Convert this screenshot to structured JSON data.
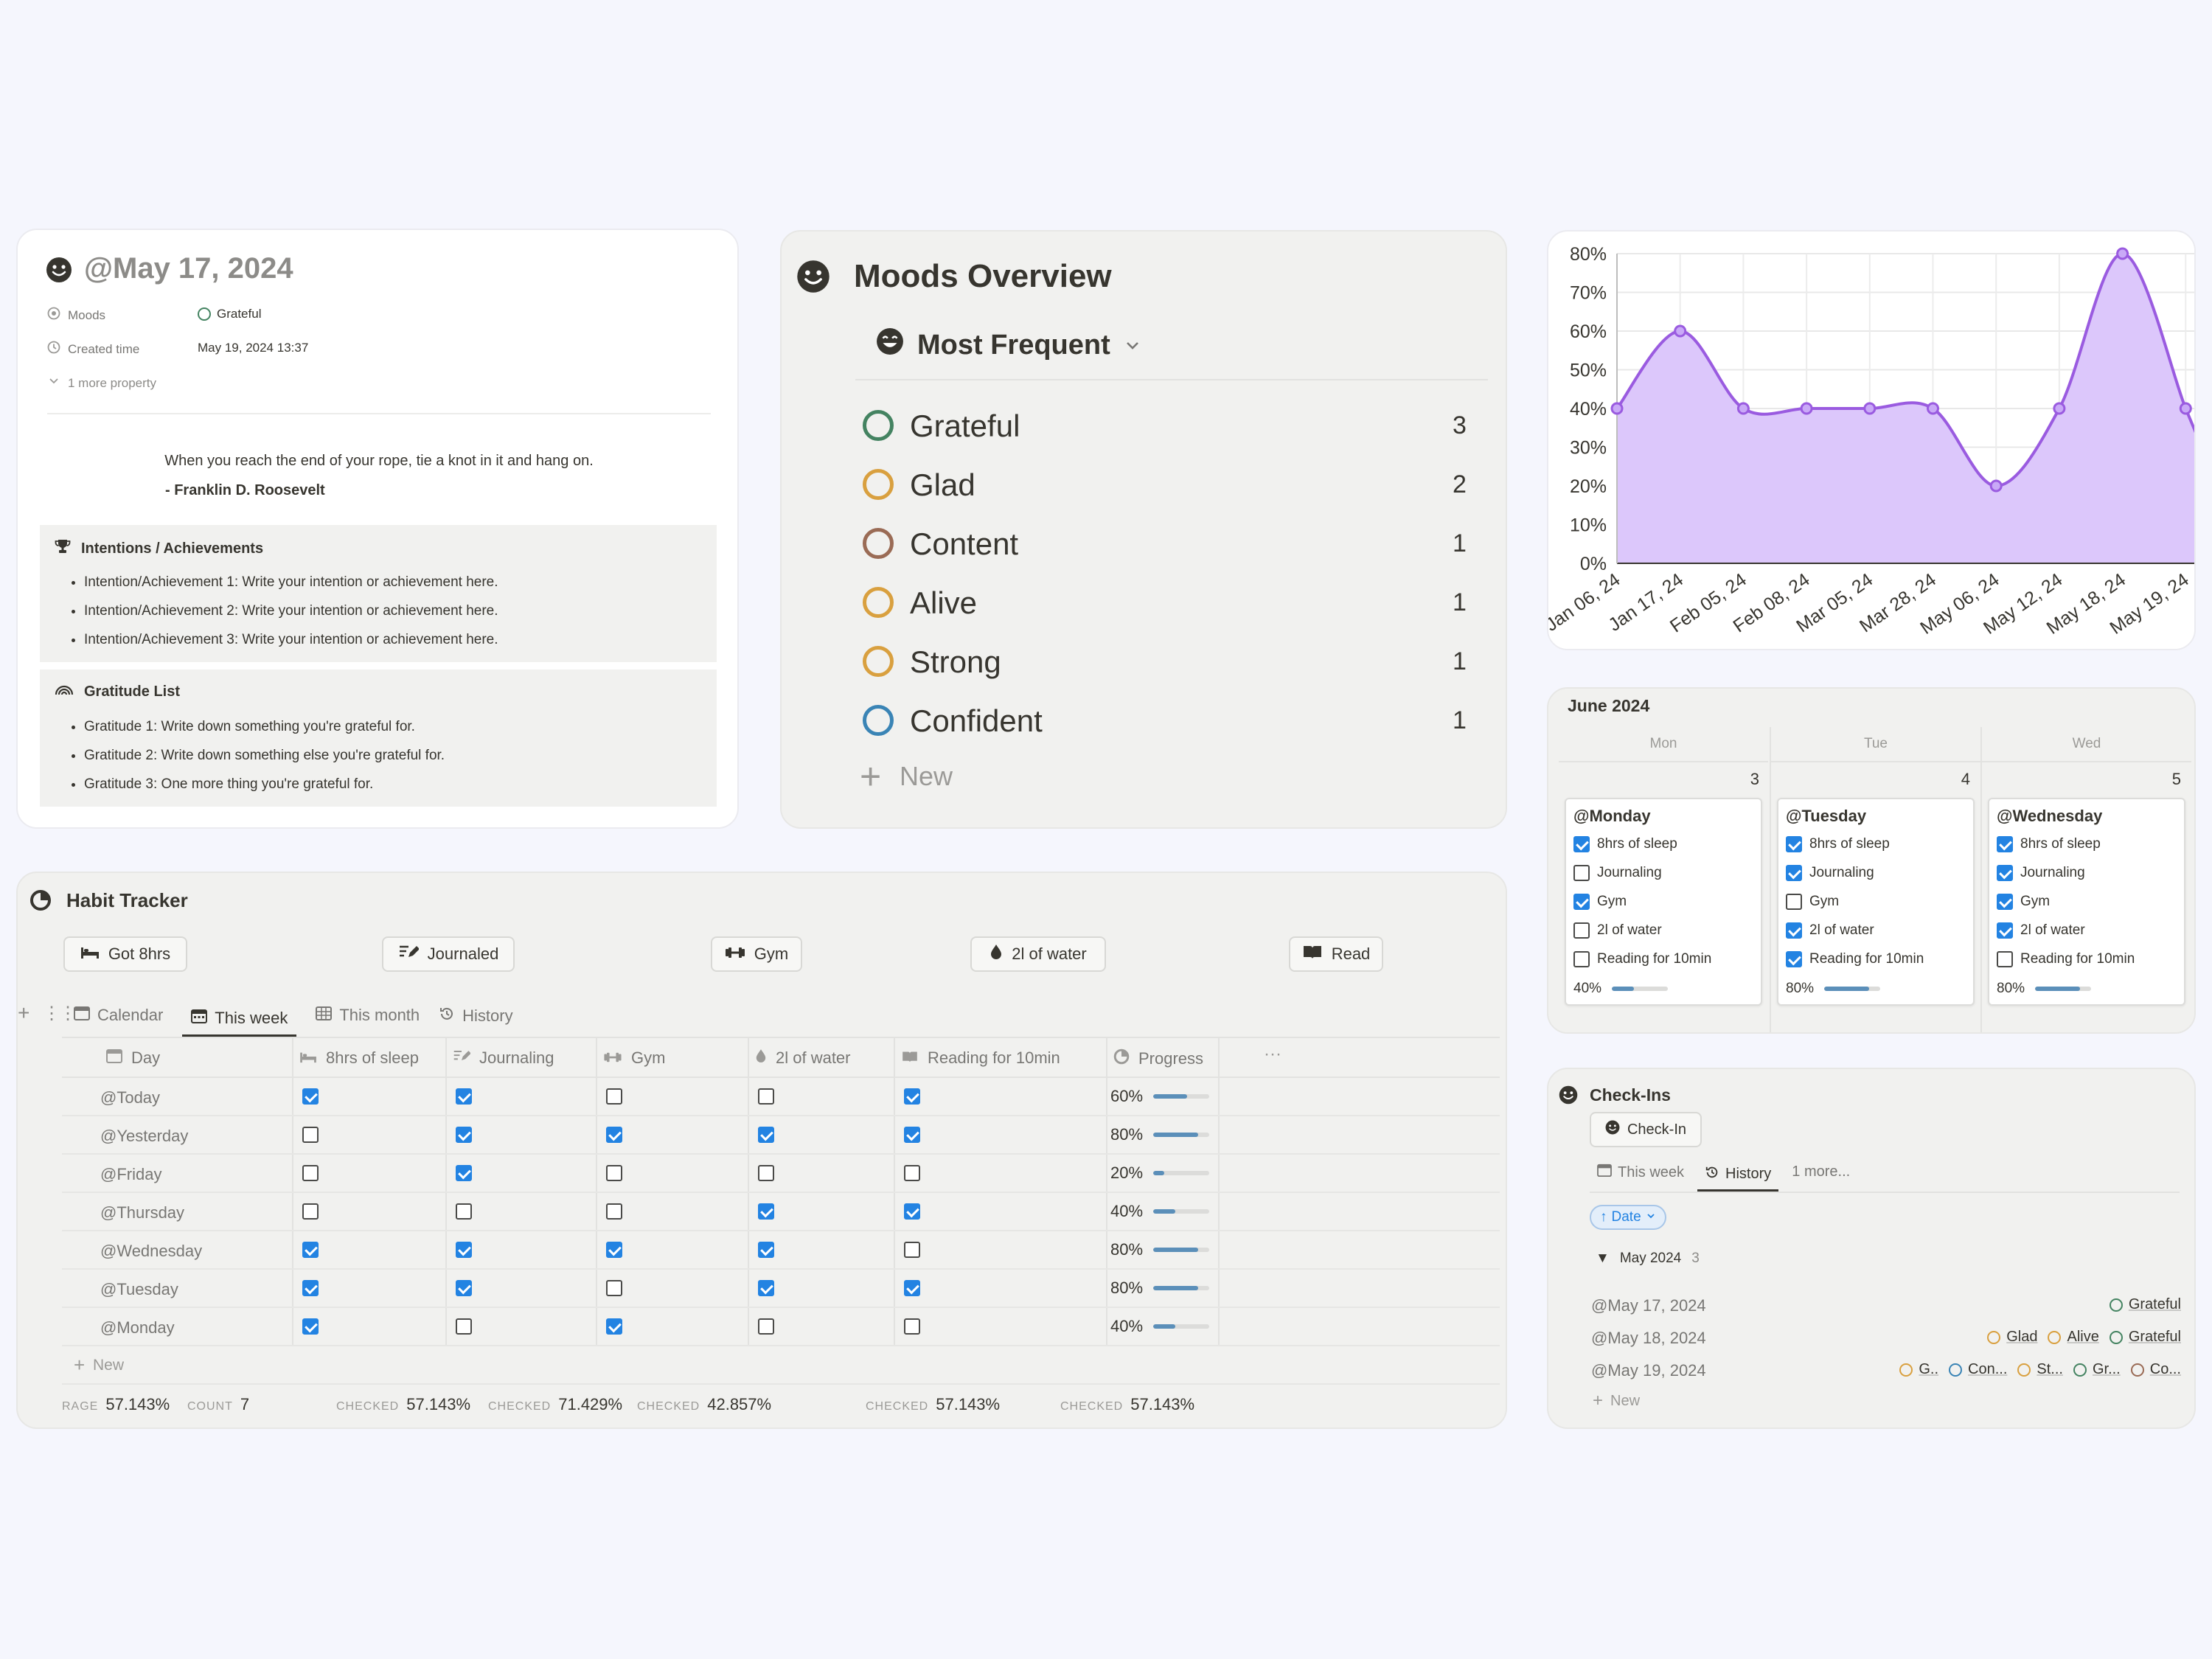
{
  "journal": {
    "title": "@May 17, 2024",
    "props": [
      {
        "label": "Moods",
        "value": "Grateful"
      },
      {
        "label": "Created time",
        "value": "May 19, 2024 13:37"
      }
    ],
    "more": "1 more property",
    "quote": "When you reach the end of your rope, tie a knot in it and hang on.",
    "author": "- Franklin D. Roosevelt",
    "intentions_title": "Intentions / Achievements",
    "intentions": [
      "Intention/Achievement 1: Write your intention or achievement here.",
      "Intention/Achievement 2: Write your intention or achievement here.",
      "Intention/Achievement 3: Write your intention or achievement here."
    ],
    "gratitude_title": "Gratitude List",
    "gratitude": [
      "Gratitude 1: Write down something you're grateful for.",
      "Gratitude 2: Write down something else you're grateful for.",
      "Gratitude 3: One more thing you're grateful for."
    ]
  },
  "moods": {
    "title": "Moods Overview",
    "view": "Most Frequent",
    "items": [
      {
        "name": "Grateful",
        "count": "3",
        "color": "#448361"
      },
      {
        "name": "Glad",
        "count": "2",
        "color": "#d9a03f"
      },
      {
        "name": "Content",
        "count": "1",
        "color": "#9a6b55"
      },
      {
        "name": "Alive",
        "count": "1",
        "color": "#d9a03f"
      },
      {
        "name": "Strong",
        "count": "1",
        "color": "#d9a03f"
      },
      {
        "name": "Confident",
        "count": "1",
        "color": "#3a84b5"
      }
    ],
    "new_label": "New"
  },
  "chart_data": {
    "type": "area",
    "x": [
      "Jan 06, 24",
      "Jan 17, 24",
      "Feb 05, 24",
      "Feb 08, 24",
      "Mar 05, 24",
      "Mar 28, 24",
      "May 06, 24",
      "May 12, 24",
      "May 18, 24",
      "May 19, 24"
    ],
    "x_cut_label": "Ma",
    "values": [
      40,
      60,
      40,
      40,
      40,
      40,
      20,
      40,
      80,
      40
    ],
    "y_ticks": [
      "80%",
      "70%",
      "60%",
      "50%",
      "40%",
      "30%",
      "20%",
      "10%",
      "0%"
    ],
    "ylim": [
      0,
      80
    ],
    "grid": true,
    "color": "#9a5be0",
    "fill": "#dcc7fb"
  },
  "calendar": {
    "month": "June 2024",
    "days": [
      {
        "dow": "Mon",
        "num": "3",
        "title": "@Monday",
        "progress": "40%",
        "value": 0.4,
        "habits": [
          {
            "label": "8hrs of sleep",
            "on": true
          },
          {
            "label": "Journaling",
            "on": false
          },
          {
            "label": "Gym",
            "on": true
          },
          {
            "label": "2l of water",
            "on": false
          },
          {
            "label": "Reading for 10min",
            "on": false
          }
        ]
      },
      {
        "dow": "Tue",
        "num": "4",
        "title": "@Tuesday",
        "progress": "80%",
        "value": 0.8,
        "habits": [
          {
            "label": "8hrs of sleep",
            "on": true
          },
          {
            "label": "Journaling",
            "on": true
          },
          {
            "label": "Gym",
            "on": false
          },
          {
            "label": "2l of water",
            "on": true
          },
          {
            "label": "Reading for 10min",
            "on": true
          }
        ]
      },
      {
        "dow": "Wed",
        "num": "5",
        "title": "@Wednesday",
        "progress": "80%",
        "value": 0.8,
        "habits": [
          {
            "label": "8hrs of sleep",
            "on": true
          },
          {
            "label": "Journaling",
            "on": true
          },
          {
            "label": "Gym",
            "on": true
          },
          {
            "label": "2l of water",
            "on": true
          },
          {
            "label": "Reading for 10min",
            "on": false
          }
        ]
      }
    ]
  },
  "habits": {
    "title": "Habit Tracker",
    "buttons": [
      "Got 8hrs",
      "Journaled",
      "Gym",
      "2l of water",
      "Read"
    ],
    "tabs": [
      "Calendar",
      "This week",
      "This month",
      "History"
    ],
    "columns": [
      "Day",
      "8hrs of sleep",
      "Journaling",
      "Gym",
      "2l of water",
      "Reading for 10min",
      "Progress"
    ],
    "rows": [
      {
        "day": "@Today",
        "checks": [
          true,
          true,
          false,
          false,
          true
        ],
        "progress": "60%",
        "value": 0.6
      },
      {
        "day": "@Yesterday",
        "checks": [
          false,
          true,
          true,
          true,
          true
        ],
        "progress": "80%",
        "value": 0.8
      },
      {
        "day": "@Friday",
        "checks": [
          false,
          true,
          false,
          false,
          false
        ],
        "progress": "20%",
        "value": 0.2
      },
      {
        "day": "@Thursday",
        "checks": [
          false,
          false,
          false,
          true,
          true
        ],
        "progress": "40%",
        "value": 0.4
      },
      {
        "day": "@Wednesday",
        "checks": [
          true,
          true,
          true,
          true,
          false
        ],
        "progress": "80%",
        "value": 0.8
      },
      {
        "day": "@Tuesday",
        "checks": [
          true,
          true,
          false,
          true,
          true
        ],
        "progress": "80%",
        "value": 0.8
      },
      {
        "day": "@Monday",
        "checks": [
          true,
          false,
          true,
          false,
          false
        ],
        "progress": "40%",
        "value": 0.4
      }
    ],
    "new_label": "New",
    "footer": [
      {
        "label": "COUNT",
        "value": "7"
      },
      {
        "label": "CHECKED",
        "value": "57.143%"
      },
      {
        "label": "CHECKED",
        "value": "71.429%"
      },
      {
        "label": "CHECKED",
        "value": "42.857%"
      },
      {
        "label": "CHECKED",
        "value": "57.143%"
      },
      {
        "label": "CHECKED",
        "value": "57.143%"
      },
      {
        "label": "RAGE",
        "value": "57.143%"
      }
    ]
  },
  "checkins": {
    "title": "Check-Ins",
    "button": "Check-In",
    "tabs": [
      "This week",
      "History",
      "1 more..."
    ],
    "sort": "Date",
    "group": "May 2024",
    "group_count": "3",
    "rows": [
      {
        "date": "@May 17, 2024",
        "tags": [
          {
            "name": "Grateful",
            "color": "#448361"
          }
        ]
      },
      {
        "date": "@May 18, 2024",
        "tags": [
          {
            "name": "Glad",
            "color": "#d9a03f"
          },
          {
            "name": "Alive",
            "color": "#d9a03f"
          },
          {
            "name": "Grateful",
            "color": "#448361"
          }
        ]
      },
      {
        "date": "@May 19, 2024",
        "tags": [
          {
            "name": "G..",
            "color": "#d9a03f"
          },
          {
            "name": "Con...",
            "color": "#3a84b5"
          },
          {
            "name": "St...",
            "color": "#d9a03f"
          },
          {
            "name": "Gr...",
            "color": "#448361"
          },
          {
            "name": "Co...",
            "color": "#9a6b55"
          }
        ]
      }
    ],
    "new_label": "New"
  }
}
